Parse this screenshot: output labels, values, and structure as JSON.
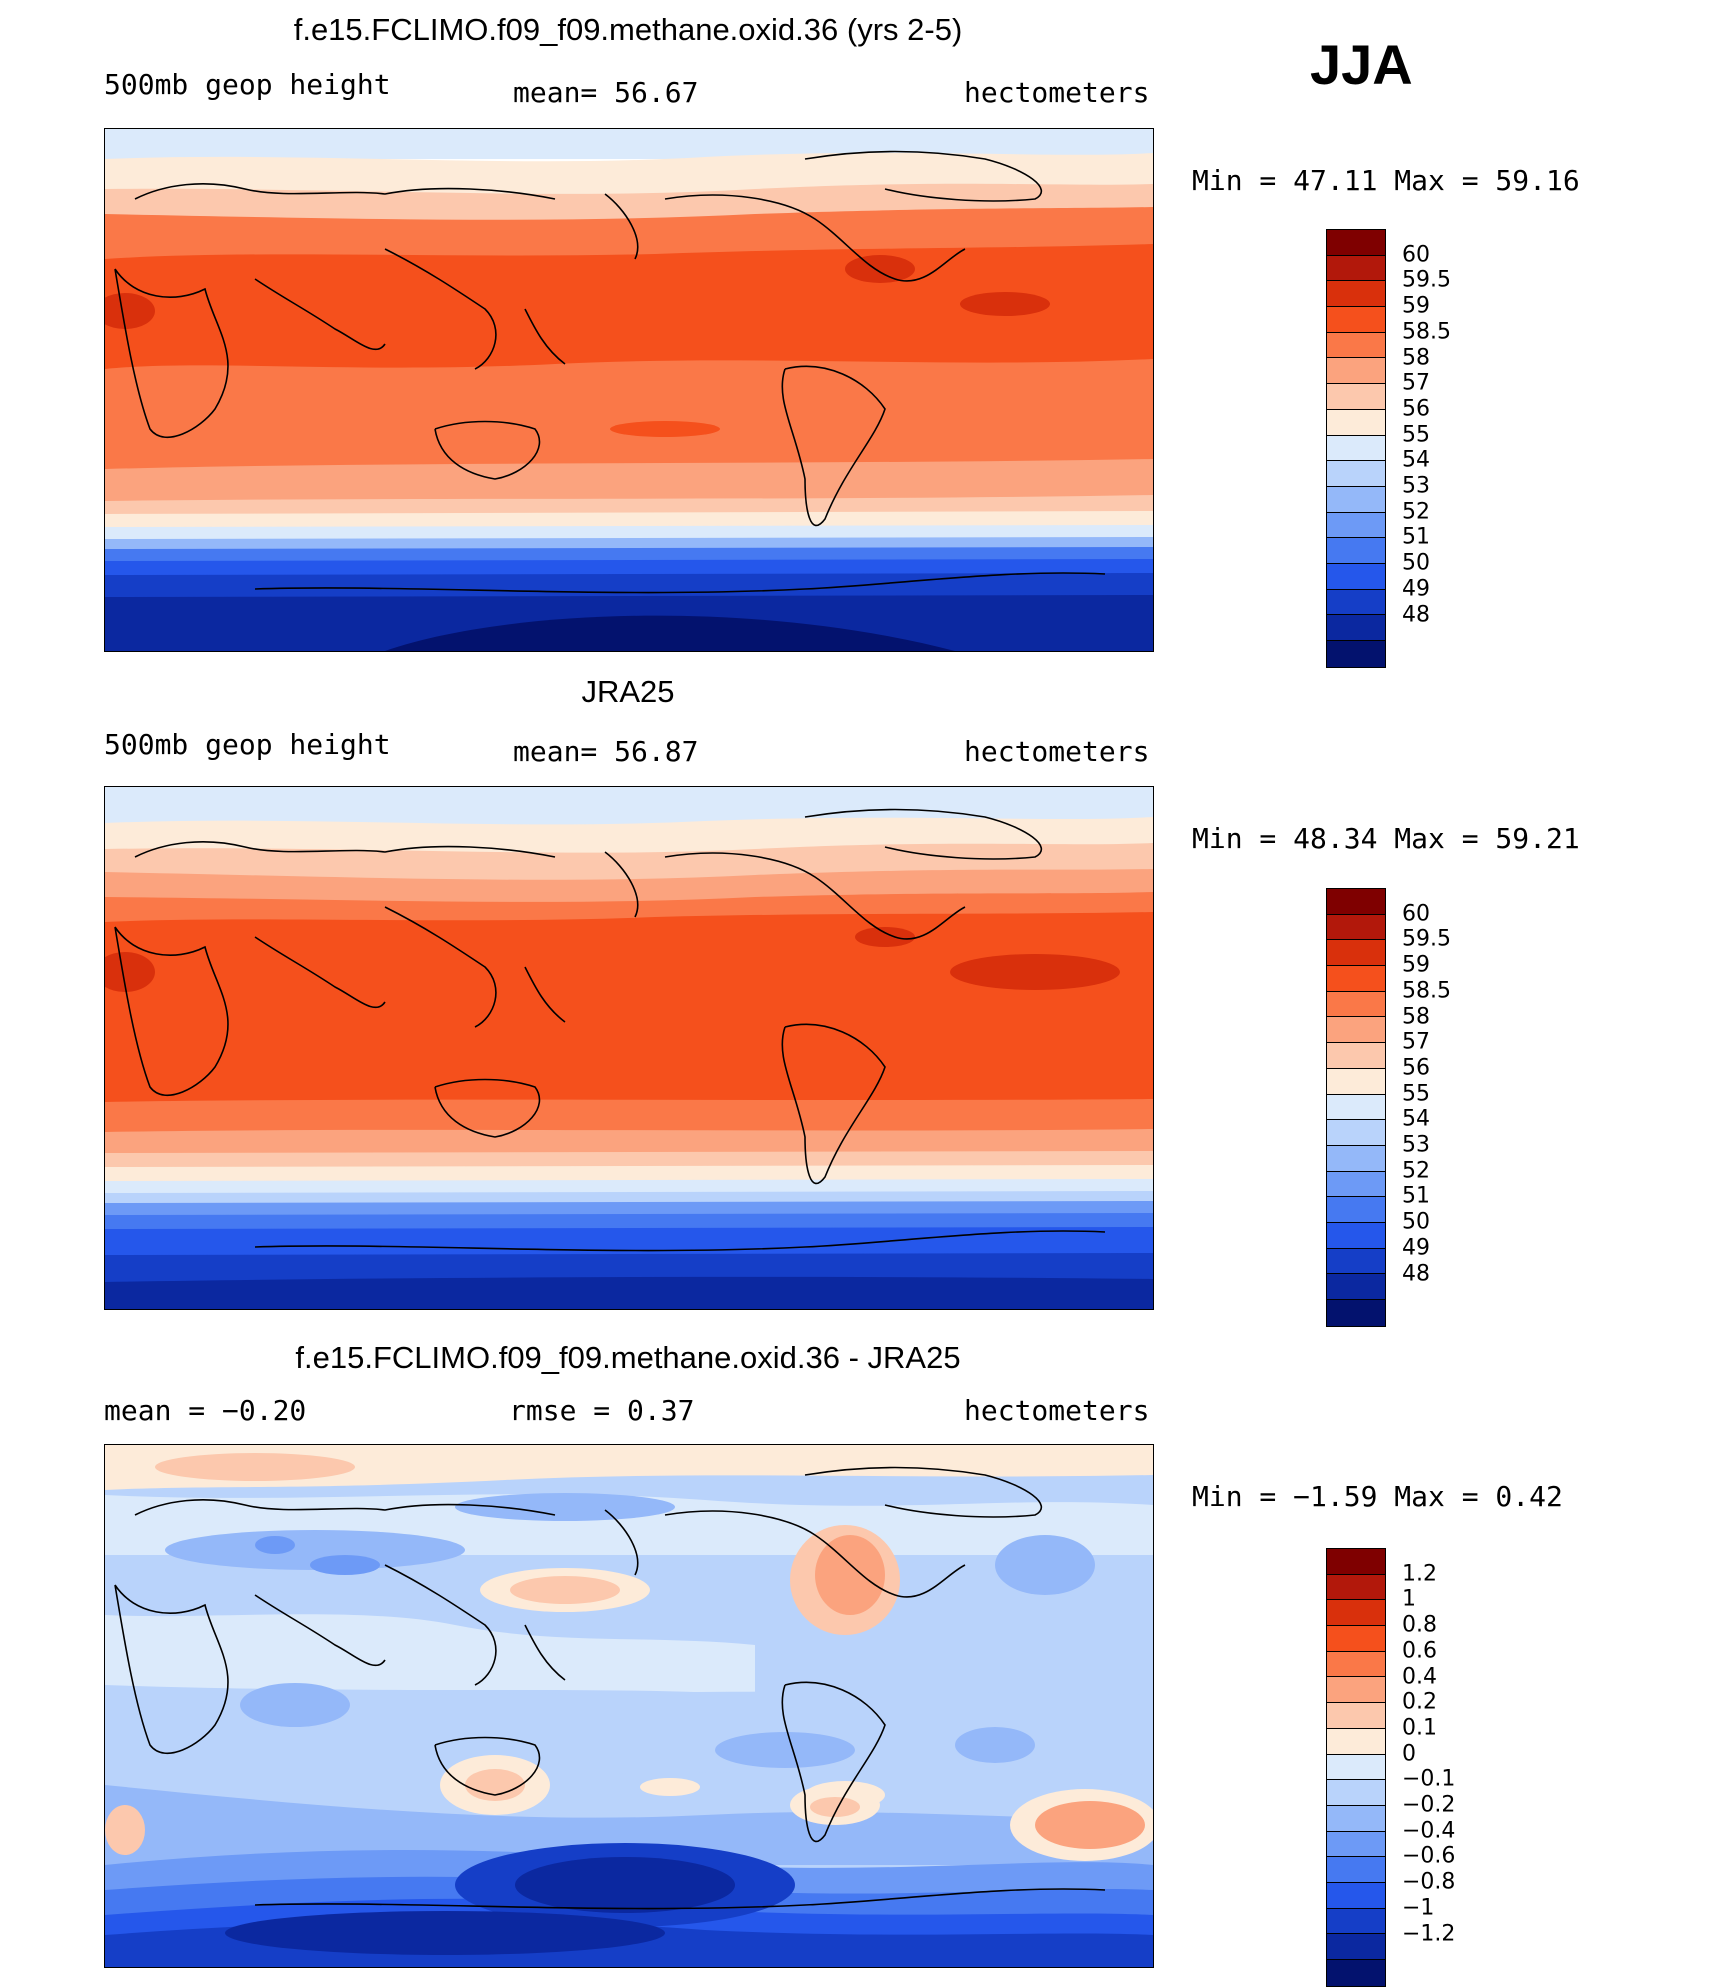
{
  "season": "JJA",
  "panels": [
    {
      "title": "f.e15.FCLIMO.f09_f09.methane.oxid.36 (yrs 2-5)",
      "left_label": "500mb geop height",
      "center_label": "mean=   56.67",
      "right_label": "hectometers",
      "stats": "Min =   47.11 Max =   59.16",
      "colorbar": {
        "colors": [
          "#7f0000",
          "#b2180b",
          "#d9300c",
          "#f5501c",
          "#fa7848",
          "#fba37e",
          "#fcc8ad",
          "#fdebd9",
          "#dbeafb",
          "#b9d3fb",
          "#94b8f9",
          "#6d9af6",
          "#4679f1",
          "#2557eb",
          "#153ec7",
          "#0b28a0",
          "#03126e"
        ],
        "labels": [
          "60",
          "59.5",
          "59",
          "58.5",
          "58",
          "57",
          "56",
          "55",
          "54",
          "53",
          "52",
          "51",
          "50",
          "49",
          "48"
        ]
      }
    },
    {
      "title": "JRA25",
      "left_label": "500mb geop height",
      "center_label": "mean=   56.87",
      "right_label": "hectometers",
      "stats": "Min =   48.34 Max =   59.21",
      "colorbar": {
        "colors": [
          "#7f0000",
          "#b2180b",
          "#d9300c",
          "#f5501c",
          "#fa7848",
          "#fba37e",
          "#fcc8ad",
          "#fdebd9",
          "#dbeafb",
          "#b9d3fb",
          "#94b8f9",
          "#6d9af6",
          "#4679f1",
          "#2557eb",
          "#153ec7",
          "#0b28a0",
          "#03126e"
        ],
        "labels": [
          "60",
          "59.5",
          "59",
          "58.5",
          "58",
          "57",
          "56",
          "55",
          "54",
          "53",
          "52",
          "51",
          "50",
          "49",
          "48"
        ]
      }
    },
    {
      "title": "f.e15.FCLIMO.f09_f09.methane.oxid.36 - JRA25",
      "left_label": "mean =   −0.20",
      "center_label": "rmse =    0.37",
      "right_label": "hectometers",
      "stats": "Min =  −1.59 Max =    0.42",
      "colorbar": {
        "colors": [
          "#7f0000",
          "#b2180b",
          "#d9300c",
          "#f5501c",
          "#fa7848",
          "#fba37e",
          "#fcc8ad",
          "#fdebd9",
          "#dbeafb",
          "#b9d3fb",
          "#94b8f9",
          "#6d9af6",
          "#4679f1",
          "#2557eb",
          "#153ec7",
          "#0b28a0",
          "#03126e"
        ],
        "labels": [
          "1.2",
          "1",
          "0.8",
          "0.6",
          "0.4",
          "0.2",
          "0.1",
          "0",
          "−0.1",
          "−0.2",
          "−0.4",
          "−0.6",
          "−0.8",
          "−1",
          "−1.2"
        ]
      }
    }
  ]
}
